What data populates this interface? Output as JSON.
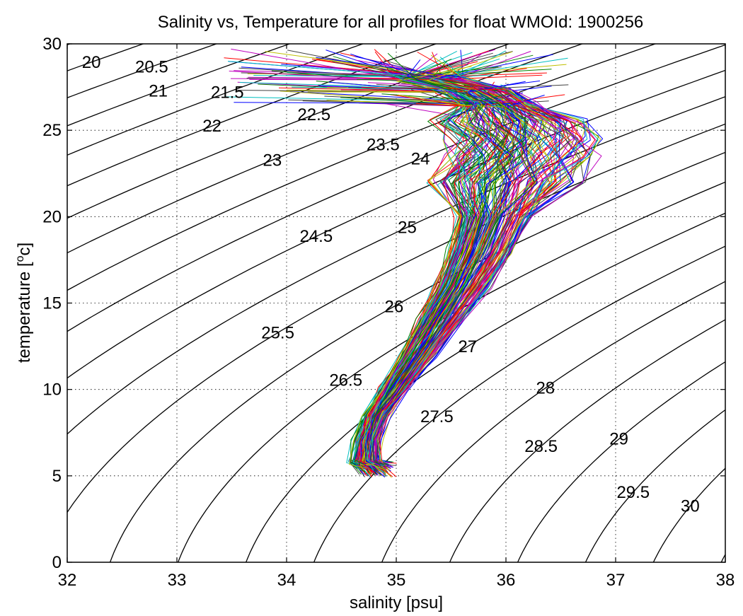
{
  "chart_data": {
    "type": "line",
    "title": "Salinity vs, Temperature for all profiles for float WMOId: 1900256",
    "xlabel": "salinity [psu]",
    "ylabel_main": "temperature [",
    "ylabel_sup": "o",
    "ylabel_end": "c]",
    "xlim": [
      32,
      38
    ],
    "ylim": [
      0,
      30
    ],
    "xticks": [
      32,
      33,
      34,
      35,
      36,
      37,
      38
    ],
    "yticks": [
      0,
      5,
      10,
      15,
      20,
      25,
      30
    ],
    "xtick_labels": [
      "32",
      "33",
      "34",
      "35",
      "36",
      "37",
      "38"
    ],
    "ytick_labels": [
      "0",
      "5",
      "10",
      "15",
      "20",
      "25",
      "30"
    ],
    "grid": true,
    "grid_style": "dotted",
    "isopycnals": {
      "sigma": [
        20,
        20.5,
        21,
        21.5,
        22,
        22.5,
        23,
        23.5,
        24,
        24.5,
        25,
        25.5,
        26,
        26.5,
        27,
        27.5,
        28,
        28.5,
        29,
        29.5,
        30
      ],
      "step": 0.5,
      "sigma_min": 18,
      "sigma_max": 30.5,
      "color": "#000000",
      "labels": [
        {
          "text": "20",
          "sigma": 20,
          "s": 32.22
        },
        {
          "text": "20.5",
          "sigma": 20.5,
          "s": 32.77
        },
        {
          "text": "21",
          "sigma": 21,
          "s": 32.83
        },
        {
          "text": "21.5",
          "sigma": 21.5,
          "s": 33.46
        },
        {
          "text": "22",
          "sigma": 22,
          "s": 33.32
        },
        {
          "text": "22.5",
          "sigma": 22.5,
          "s": 34.25
        },
        {
          "text": "23",
          "sigma": 23,
          "s": 33.87
        },
        {
          "text": "23.5",
          "sigma": 23.5,
          "s": 34.88
        },
        {
          "text": "24",
          "sigma": 24,
          "s": 35.22
        },
        {
          "text": "24.5",
          "sigma": 24.5,
          "s": 34.27
        },
        {
          "text": "25",
          "sigma": 25,
          "s": 35.1
        },
        {
          "text": "25.5",
          "sigma": 25.5,
          "s": 33.92
        },
        {
          "text": "26",
          "sigma": 26,
          "s": 34.98
        },
        {
          "text": "26.5",
          "sigma": 26.5,
          "s": 34.54
        },
        {
          "text": "27",
          "sigma": 27,
          "s": 35.65
        },
        {
          "text": "27.5",
          "sigma": 27.5,
          "s": 35.37
        },
        {
          "text": "28",
          "sigma": 28,
          "s": 36.36
        },
        {
          "text": "28.5",
          "sigma": 28.5,
          "s": 36.32
        },
        {
          "text": "29",
          "sigma": 29,
          "s": 37.03
        },
        {
          "text": "29.5",
          "sigma": 29.5,
          "s": 37.16
        },
        {
          "text": "30",
          "sigma": 30,
          "s": 37.68
        }
      ]
    },
    "profiles": {
      "count": 160,
      "colors": [
        "#0000ff",
        "#ff0000",
        "#008000",
        "#00bfbf",
        "#bf00bf",
        "#bfbf00",
        "#404040"
      ],
      "mean_curve": [
        {
          "s": 34.84,
          "t": 5.0
        },
        {
          "s": 34.72,
          "t": 5.8
        },
        {
          "s": 34.74,
          "t": 7.0
        },
        {
          "s": 34.82,
          "t": 8.5
        },
        {
          "s": 34.97,
          "t": 10.0
        },
        {
          "s": 35.2,
          "t": 12.0
        },
        {
          "s": 35.4,
          "t": 14.0
        },
        {
          "s": 35.6,
          "t": 16.0
        },
        {
          "s": 35.77,
          "t": 18.0
        },
        {
          "s": 35.89,
          "t": 20.0
        },
        {
          "s": 36.0,
          "t": 22.0
        },
        {
          "s": 36.11,
          "t": 23.5
        },
        {
          "s": 36.12,
          "t": 24.5
        },
        {
          "s": 36.04,
          "t": 25.5
        },
        {
          "s": 35.92,
          "t": 26.5
        },
        {
          "s": 35.72,
          "t": 27.3
        },
        {
          "s": 35.3,
          "t": 28.0
        },
        {
          "s": 34.9,
          "t": 28.2
        }
      ]
    }
  }
}
